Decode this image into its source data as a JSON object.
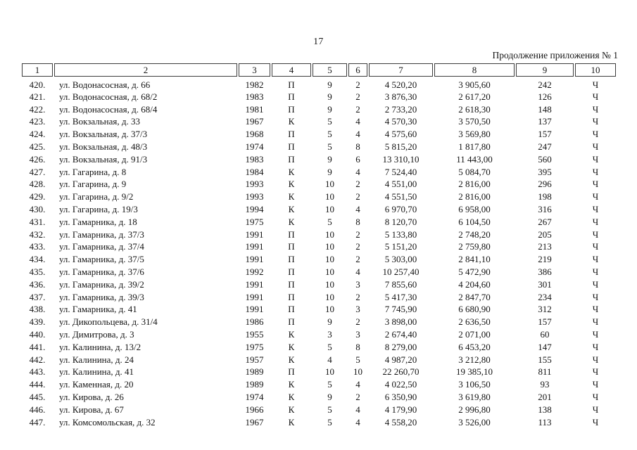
{
  "page": {
    "number": "17",
    "caption": "Продолжение приложения № 1"
  },
  "table": {
    "headers": [
      "1",
      "2",
      "3",
      "4",
      "5",
      "6",
      "7",
      "8",
      "9",
      "10"
    ],
    "rows": [
      [
        "420.",
        "ул. Водонасосная, д. 66",
        "1982",
        "П",
        "9",
        "2",
        "4 520,20",
        "3 905,60",
        "242",
        "Ч"
      ],
      [
        "421.",
        "ул. Водонасосная, д. 68/2",
        "1983",
        "П",
        "9",
        "2",
        "3 876,30",
        "2 617,20",
        "126",
        "Ч"
      ],
      [
        "422.",
        "ул. Водонасосная, д. 68/4",
        "1981",
        "П",
        "9",
        "2",
        "2 733,20",
        "2 618,30",
        "148",
        "Ч"
      ],
      [
        "423.",
        "ул. Вокзальная, д. 33",
        "1967",
        "К",
        "5",
        "4",
        "4 570,30",
        "3 570,50",
        "137",
        "Ч"
      ],
      [
        "424.",
        "ул. Вокзальная, д. 37/3",
        "1968",
        "П",
        "5",
        "4",
        "4 575,60",
        "3 569,80",
        "157",
        "Ч"
      ],
      [
        "425.",
        "ул. Вокзальная, д. 48/3",
        "1974",
        "П",
        "5",
        "8",
        "5 815,20",
        "1 817,80",
        "247",
        "Ч"
      ],
      [
        "426.",
        "ул. Вокзальная, д. 91/3",
        "1983",
        "П",
        "9",
        "6",
        "13 310,10",
        "11 443,00",
        "560",
        "Ч"
      ],
      [
        "427.",
        "ул. Гагарина, д. 8",
        "1984",
        "К",
        "9",
        "4",
        "7 524,40",
        "5 084,70",
        "395",
        "Ч"
      ],
      [
        "428.",
        "ул. Гагарина, д. 9",
        "1993",
        "К",
        "10",
        "2",
        "4 551,00",
        "2 816,00",
        "296",
        "Ч"
      ],
      [
        "429.",
        "ул. Гагарина, д. 9/2",
        "1993",
        "К",
        "10",
        "2",
        "4 551,50",
        "2 816,00",
        "198",
        "Ч"
      ],
      [
        "430.",
        "ул. Гагарина, д. 19/3",
        "1994",
        "К",
        "10",
        "4",
        "6 970,70",
        "6 958,00",
        "316",
        "Ч"
      ],
      [
        "431.",
        "ул. Гамарника, д. 18",
        "1975",
        "К",
        "5",
        "8",
        "8 120,70",
        "6 104,50",
        "267",
        "Ч"
      ],
      [
        "432.",
        "ул. Гамарника, д. 37/3",
        "1991",
        "П",
        "10",
        "2",
        "5 133,80",
        "2 748,20",
        "205",
        "Ч"
      ],
      [
        "433.",
        "ул. Гамарника, д. 37/4",
        "1991",
        "П",
        "10",
        "2",
        "5 151,20",
        "2 759,80",
        "213",
        "Ч"
      ],
      [
        "434.",
        "ул. Гамарника, д. 37/5",
        "1991",
        "П",
        "10",
        "2",
        "5 303,00",
        "2 841,10",
        "219",
        "Ч"
      ],
      [
        "435.",
        "ул. Гамарника, д. 37/6",
        "1992",
        "П",
        "10",
        "4",
        "10 257,40",
        "5 472,90",
        "386",
        "Ч"
      ],
      [
        "436.",
        "ул. Гамарника, д. 39/2",
        "1991",
        "П",
        "10",
        "3",
        "7 855,60",
        "4 204,60",
        "301",
        "Ч"
      ],
      [
        "437.",
        "ул. Гамарника, д. 39/3",
        "1991",
        "П",
        "10",
        "2",
        "5 417,30",
        "2 847,70",
        "234",
        "Ч"
      ],
      [
        "438.",
        "ул. Гамарника, д. 41",
        "1991",
        "П",
        "10",
        "3",
        "7 745,90",
        "6 680,90",
        "312",
        "Ч"
      ],
      [
        "439.",
        "ул. Дикопольцева, д. 31/4",
        "1986",
        "П",
        "9",
        "2",
        "3 898,00",
        "2 636,50",
        "157",
        "Ч"
      ],
      [
        "440.",
        "ул. Димитрова, д. 3",
        "1955",
        "К",
        "3",
        "3",
        "2 674,40",
        "2 071,00",
        "60",
        "Ч"
      ],
      [
        "441.",
        "ул. Калинина, д. 13/2",
        "1975",
        "К",
        "5",
        "8",
        "8 279,00",
        "6 453,20",
        "147",
        "Ч"
      ],
      [
        "442.",
        "ул. Калинина, д. 24",
        "1957",
        "К",
        "4",
        "5",
        "4 987,20",
        "3 212,80",
        "155",
        "Ч"
      ],
      [
        "443.",
        "ул. Калинина, д. 41",
        "1989",
        "П",
        "10",
        "10",
        "22 260,70",
        "19 385,10",
        "811",
        "Ч"
      ],
      [
        "444.",
        "ул. Каменная, д. 20",
        "1989",
        "К",
        "5",
        "4",
        "4 022,50",
        "3 106,50",
        "93",
        "Ч"
      ],
      [
        "445.",
        "ул. Кирова, д. 26",
        "1974",
        "К",
        "9",
        "2",
        "6 350,90",
        "3 619,80",
        "201",
        "Ч"
      ],
      [
        "446.",
        "ул. Кирова, д. 67",
        "1966",
        "К",
        "5",
        "4",
        "4 179,90",
        "2 996,80",
        "138",
        "Ч"
      ],
      [
        "447.",
        "ул. Комсомольская, д. 32",
        "1967",
        "К",
        "5",
        "4",
        "4 558,20",
        "3 526,00",
        "113",
        "Ч"
      ]
    ]
  }
}
